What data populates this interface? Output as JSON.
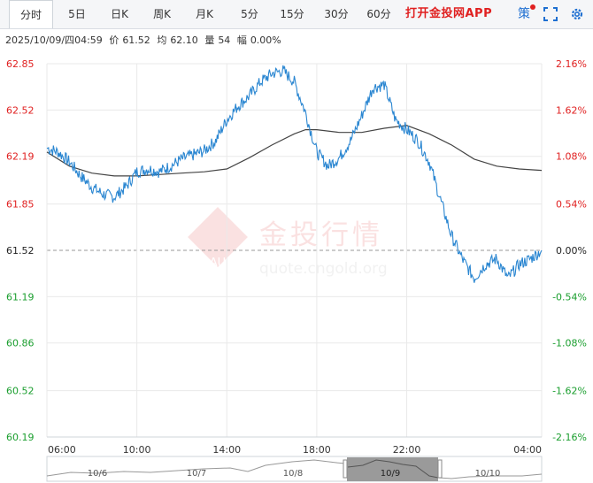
{
  "tabs": [
    {
      "label": "分时",
      "active": true
    },
    {
      "label": "5日"
    },
    {
      "label": "日K"
    },
    {
      "label": "周K"
    },
    {
      "label": "月K"
    },
    {
      "label": "5分"
    },
    {
      "label": "15分"
    },
    {
      "label": "30分"
    },
    {
      "label": "60分"
    }
  ],
  "toolbar": {
    "app_link": "打开金投网APP",
    "strategy_label": "策",
    "fullscreen_icon": "expand-icon",
    "settings_icon": "gear-icon"
  },
  "quote": {
    "datetime": "2025/10/09/四04:59",
    "price_label": "价",
    "price": "61.52",
    "avg_label": "均",
    "avg": "62.10",
    "volume_label": "量",
    "volume": "54",
    "change_label": "幅",
    "change": "0.00%"
  },
  "watermark": {
    "brand": "金投行情",
    "logo": "AU",
    "site": "quote.cngold.org"
  },
  "colors": {
    "price_line": "#2a86d1",
    "avg_line": "#444444",
    "up": "#e02020",
    "down": "#1a9e2e",
    "grid": "#e9e9e9"
  },
  "chart_data": {
    "type": "line",
    "y_left_ticks": [
      "62.85",
      "62.52",
      "62.19",
      "61.85",
      "61.52",
      "61.19",
      "60.86",
      "60.52",
      "60.19"
    ],
    "y_right_ticks": [
      "2.16%",
      "1.62%",
      "1.08%",
      "0.54%",
      "0.00%",
      "-0.54%",
      "-1.08%",
      "-1.62%",
      "-2.16%"
    ],
    "x_ticks": [
      "06:00",
      "10:00",
      "14:00",
      "18:00",
      "22:00",
      "04:00"
    ],
    "ylim": [
      60.19,
      62.85
    ],
    "reference": 61.52,
    "x_range": [
      6,
      28
    ],
    "price": [
      [
        6.0,
        62.25
      ],
      [
        6.5,
        62.22
      ],
      [
        7.0,
        62.15
      ],
      [
        7.5,
        62.05
      ],
      [
        8.0,
        61.97
      ],
      [
        8.5,
        61.92
      ],
      [
        9.0,
        61.9
      ],
      [
        9.5,
        61.97
      ],
      [
        10.0,
        62.08
      ],
      [
        10.5,
        62.1
      ],
      [
        11.0,
        62.08
      ],
      [
        11.5,
        62.12
      ],
      [
        12.0,
        62.17
      ],
      [
        12.5,
        62.2
      ],
      [
        13.0,
        62.23
      ],
      [
        13.5,
        62.3
      ],
      [
        14.0,
        62.45
      ],
      [
        14.5,
        62.55
      ],
      [
        15.0,
        62.62
      ],
      [
        15.5,
        62.72
      ],
      [
        16.0,
        62.78
      ],
      [
        16.5,
        62.8
      ],
      [
        17.0,
        62.72
      ],
      [
        17.5,
        62.5
      ],
      [
        18.0,
        62.22
      ],
      [
        18.5,
        62.12
      ],
      [
        19.0,
        62.18
      ],
      [
        19.5,
        62.3
      ],
      [
        20.0,
        62.48
      ],
      [
        20.5,
        62.68
      ],
      [
        21.0,
        62.7
      ],
      [
        21.5,
        62.45
      ],
      [
        22.0,
        62.38
      ],
      [
        22.5,
        62.3
      ],
      [
        23.0,
        62.15
      ],
      [
        23.5,
        61.88
      ],
      [
        24.0,
        61.62
      ],
      [
        24.5,
        61.45
      ],
      [
        25.0,
        61.32
      ],
      [
        25.5,
        61.42
      ],
      [
        26.0,
        61.46
      ],
      [
        26.5,
        61.32
      ],
      [
        27.0,
        61.42
      ],
      [
        27.5,
        61.46
      ],
      [
        28.0,
        61.52
      ]
    ],
    "average": [
      [
        6.0,
        62.22
      ],
      [
        7.0,
        62.12
      ],
      [
        8.0,
        62.07
      ],
      [
        9.0,
        62.05
      ],
      [
        10.0,
        62.05
      ],
      [
        11.0,
        62.06
      ],
      [
        12.0,
        62.07
      ],
      [
        13.0,
        62.08
      ],
      [
        14.0,
        62.1
      ],
      [
        15.0,
        62.18
      ],
      [
        16.0,
        62.27
      ],
      [
        17.0,
        62.35
      ],
      [
        17.5,
        62.38
      ],
      [
        18.0,
        62.38
      ],
      [
        19.0,
        62.36
      ],
      [
        20.0,
        62.36
      ],
      [
        21.0,
        62.39
      ],
      [
        22.0,
        62.41
      ],
      [
        23.0,
        62.35
      ],
      [
        24.0,
        62.27
      ],
      [
        25.0,
        62.17
      ],
      [
        26.0,
        62.12
      ],
      [
        27.0,
        62.1
      ],
      [
        28.0,
        62.09
      ]
    ]
  },
  "navigator": {
    "dates": [
      "10/6",
      "10/7",
      "10/8",
      "10/9",
      "10/10"
    ],
    "selected": "10/9"
  }
}
